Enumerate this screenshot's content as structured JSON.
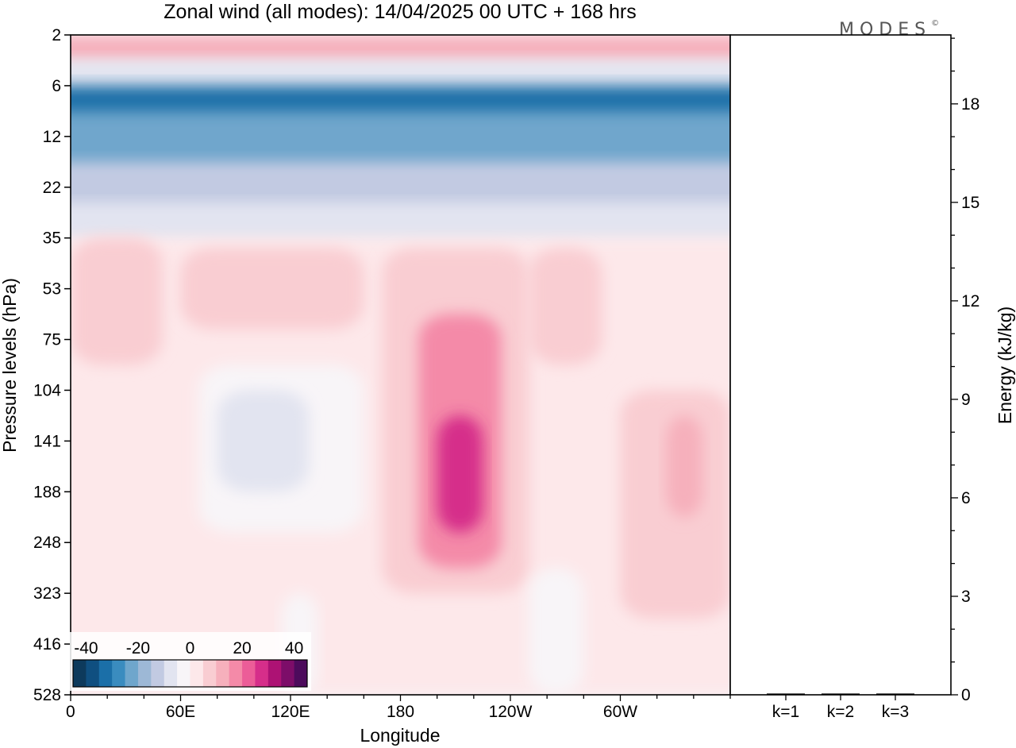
{
  "title": "Zonal wind (all modes):  14/04/2025  00 UTC  + 168 hrs",
  "brand": "MODES",
  "brand_mark": "©",
  "chart_data": [
    {
      "type": "heatmap",
      "xlabel": "Longitude",
      "ylabel": "Pressure levels (hPa)",
      "x_ticks": [
        "0",
        "60E",
        "120E",
        "180",
        "120W",
        "60W"
      ],
      "x_tick_degrees": [
        0,
        60,
        120,
        180,
        240,
        300
      ],
      "xlim": [
        0,
        360
      ],
      "y_ticks": [
        "2",
        "6",
        "12",
        "22",
        "35",
        "53",
        "75",
        "104",
        "141",
        "188",
        "248",
        "323",
        "416",
        "528"
      ],
      "y_scale": "irregular pressure levels, top to bottom",
      "colorbar": {
        "tick_labels": [
          "-40",
          "-20",
          "0",
          "20",
          "40"
        ],
        "tick_values": [
          -40,
          -20,
          0,
          20,
          40
        ],
        "range": [
          -45,
          45
        ],
        "step": 5,
        "colors": [
          "#0d3a5c",
          "#0f4f80",
          "#1b6fa8",
          "#3a8cbf",
          "#6fa6cc",
          "#9db8d6",
          "#c2cae2",
          "#e2e4f0",
          "#f8f5f8",
          "#fde8ea",
          "#f9cdd2",
          "#f6b0bc",
          "#f48aa8",
          "#ec5d98",
          "#d62e8a",
          "#ad1274",
          "#7d0d69",
          "#4d0b5c"
        ]
      },
      "fields": [
        {
          "lon": [
            0,
            360
          ],
          "level": [
            0.0,
            0.55
          ],
          "value": 12,
          "note": ""
        },
        {
          "lon": [
            0,
            360
          ],
          "level": [
            0.5,
            1.5
          ],
          "value": -10
        },
        {
          "lon": [
            0,
            360
          ],
          "level": [
            1.0,
            2.1
          ],
          "value": -32
        },
        {
          "lon": [
            0,
            360
          ],
          "level": [
            1.5,
            2.8
          ],
          "value": -25
        },
        {
          "lon": [
            0,
            360
          ],
          "level": [
            2.5,
            3.6
          ],
          "value": -15
        },
        {
          "lon": [
            0,
            360
          ],
          "level": [
            3.3,
            4.1
          ],
          "value": -6
        },
        {
          "lon": [
            0,
            360
          ],
          "level": [
            4.0,
            13.0
          ],
          "value": 3
        },
        {
          "lon": [
            0,
            50
          ],
          "level": [
            4.0,
            6.5
          ],
          "value": 7
        },
        {
          "lon": [
            60,
            160
          ],
          "level": [
            4.2,
            5.8
          ],
          "value": 7
        },
        {
          "lon": [
            170,
            250
          ],
          "level": [
            4.2,
            11.0
          ],
          "value": 7
        },
        {
          "lon": [
            190,
            235
          ],
          "level": [
            5.5,
            10.5
          ],
          "value": 15
        },
        {
          "lon": [
            200,
            225
          ],
          "level": [
            7.5,
            9.8
          ],
          "value": 25
        },
        {
          "lon": [
            250,
            290
          ],
          "level": [
            4.2,
            6.5
          ],
          "value": 7
        },
        {
          "lon": [
            300,
            360
          ],
          "level": [
            7.0,
            11.5
          ],
          "value": 7
        },
        {
          "lon": [
            325,
            345
          ],
          "level": [
            7.5,
            9.5
          ],
          "value": 12
        },
        {
          "lon": [
            70,
            160
          ],
          "level": [
            6.5,
            9.8
          ],
          "value": -5
        },
        {
          "lon": [
            80,
            130
          ],
          "level": [
            7.0,
            9.0
          ],
          "value": -10
        },
        {
          "lon": [
            115,
            135
          ],
          "level": [
            11.0,
            13.0
          ],
          "value": -4
        },
        {
          "lon": [
            250,
            280
          ],
          "level": [
            10.5,
            13.0
          ],
          "value": -3
        }
      ]
    },
    {
      "type": "bar",
      "categories": [
        "k=1",
        "k=2",
        "k=3"
      ],
      "values": [
        0.02,
        0.01,
        0.01
      ],
      "ylabel": "Energy (kJ/kg)",
      "y_ticks": [
        0,
        3,
        6,
        9,
        12,
        15,
        18
      ],
      "ylim": [
        0,
        20.1
      ],
      "bar_color": "#000000"
    }
  ]
}
